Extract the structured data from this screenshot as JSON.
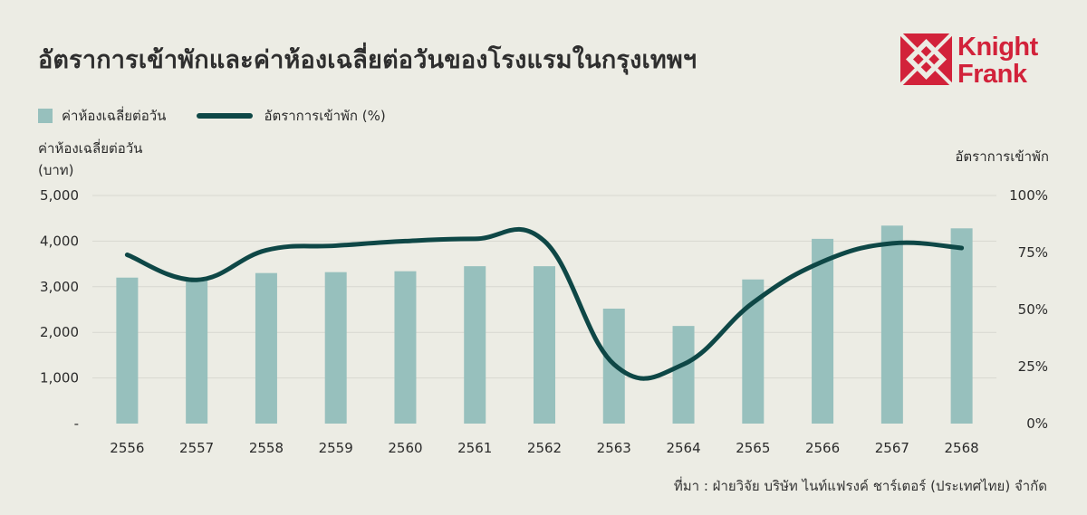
{
  "title": "อัตราการเข้าพักและค่าห้องเฉลี่ยต่อวันของโรงแรมในกรุงเทพฯ",
  "brand": {
    "line1": "Knight",
    "line2": "Frank",
    "color": "#d2223a"
  },
  "legend": {
    "bar": "ค่าห้องเฉลี่ยต่อวัน",
    "line": "อัตราการเข้าพัก (%)"
  },
  "axis_left_label": {
    "line1": "ค่าห้องเฉลี่ยต่อวัน",
    "line2": "(บาท)"
  },
  "axis_right_label": "อัตราการเข้าพัก",
  "source": "ที่มา : ฝ่ายวิจัย บริษัท ไนท์แฟรงค์ ชาร์เตอร์ (ประเทศไทย) จำกัด",
  "colors": {
    "bar": "#97c0bd",
    "line": "#0e4746",
    "background": "#ececE4",
    "grid": "#d7d7d0"
  },
  "chart_data": {
    "type": "bar",
    "categories": [
      "2556",
      "2557",
      "2558",
      "2559",
      "2560",
      "2561",
      "2562",
      "2563",
      "2564",
      "2565",
      "2566",
      "2567",
      "2568"
    ],
    "series": [
      {
        "name": "ค่าห้องเฉลี่ยต่อวัน",
        "type": "bar",
        "axis": "left",
        "values": [
          3200,
          3150,
          3300,
          3320,
          3340,
          3450,
          3450,
          2520,
          2140,
          3160,
          4050,
          4340,
          4280
        ]
      },
      {
        "name": "อัตราการเข้าพัก (%)",
        "type": "line",
        "axis": "right",
        "values": [
          74,
          63,
          76,
          78,
          80,
          81,
          80,
          26,
          26,
          53,
          71,
          79,
          77
        ]
      }
    ],
    "y_left": {
      "min": 0,
      "max": 5000,
      "ticks": [
        "-",
        "1,000",
        "2,000",
        "3,000",
        "4,000",
        "5,000"
      ]
    },
    "y_right": {
      "min": 0,
      "max": 100,
      "ticks": [
        "0%",
        "25%",
        "50%",
        "75%",
        "100%"
      ]
    },
    "grid": true,
    "legend_position": "top-left"
  }
}
